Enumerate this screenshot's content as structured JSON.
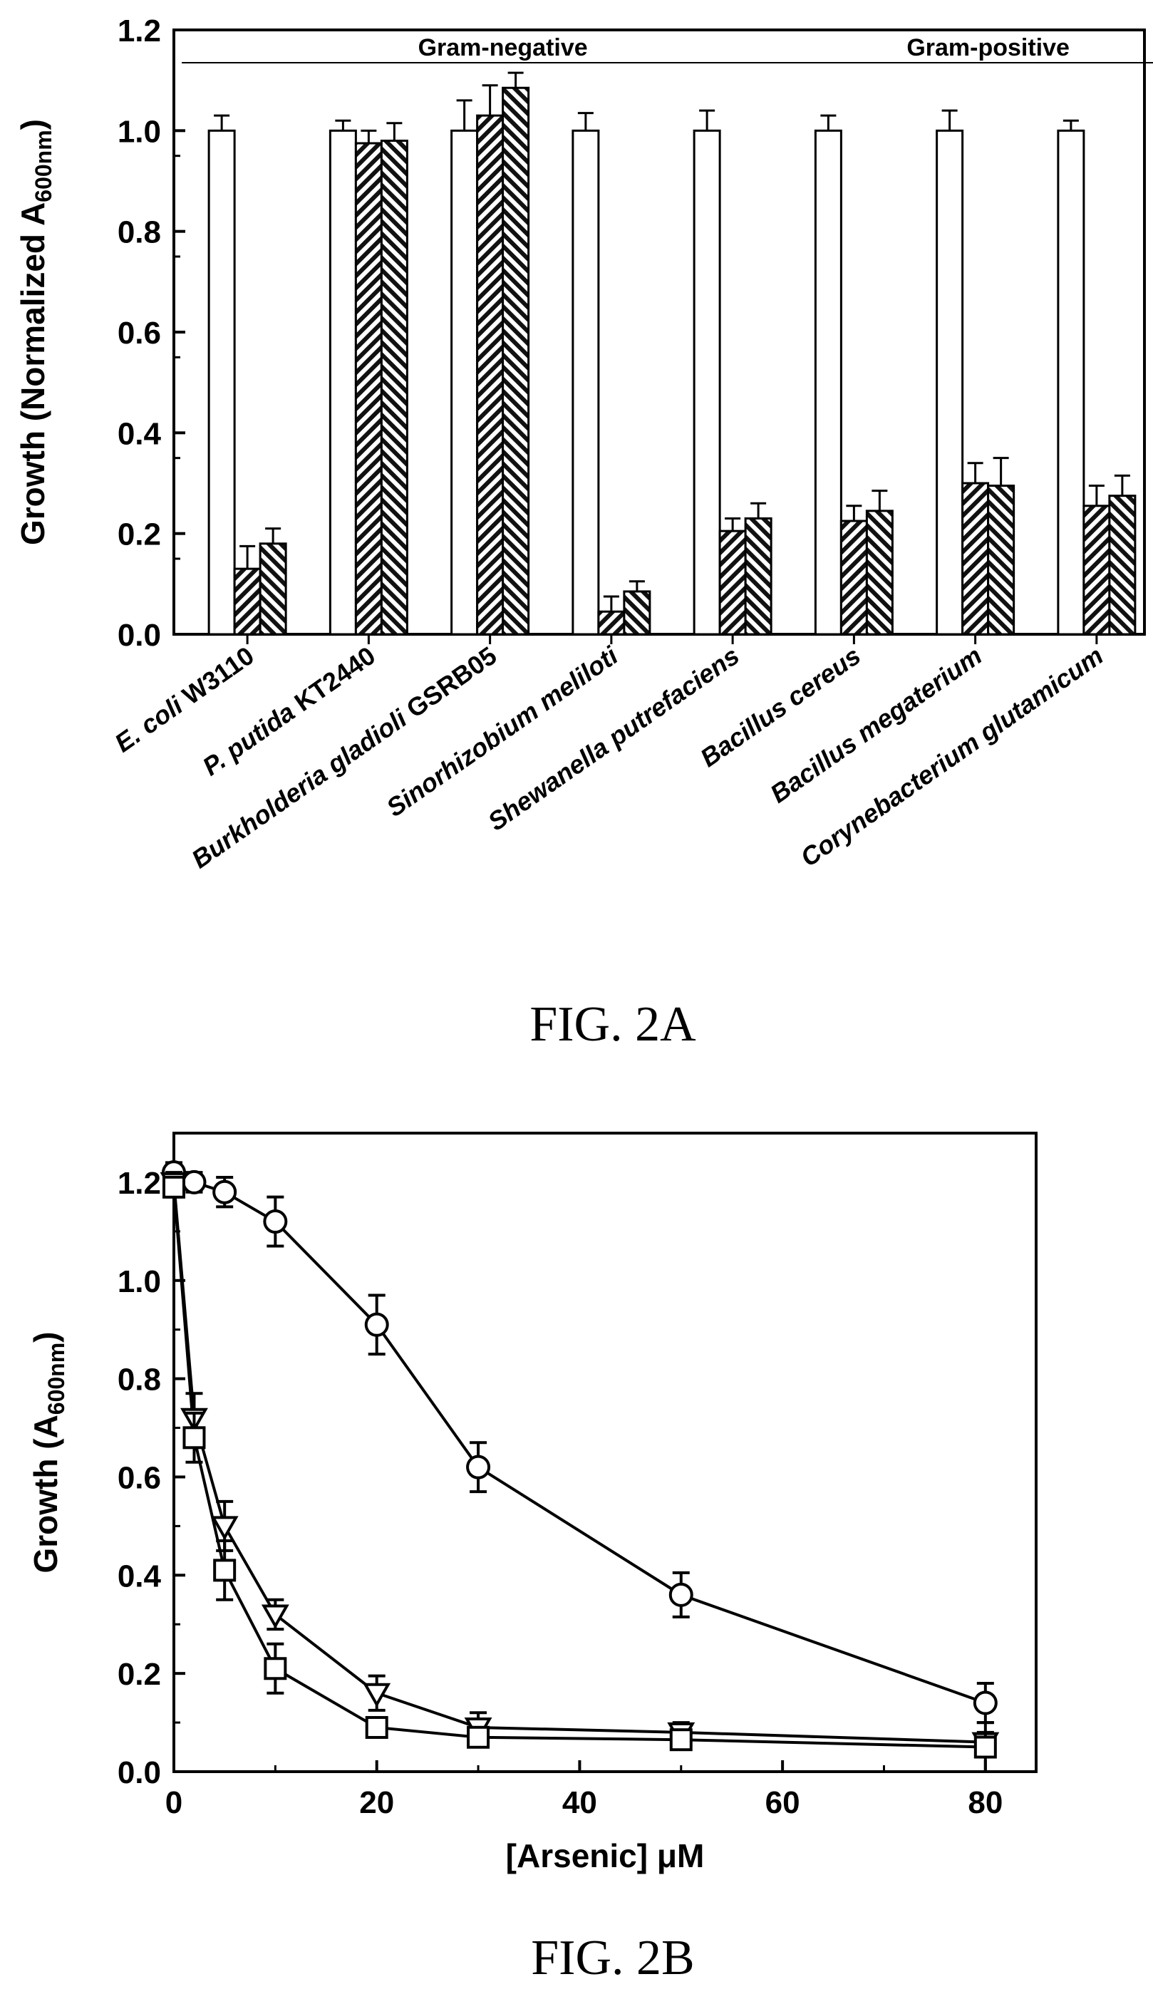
{
  "chart_data": [
    {
      "type": "bar",
      "caption": "FIG. 2A",
      "ylabel": "Growth (Normalized A",
      "ylabel_sub": "600nm",
      "ylabel_close": ")",
      "ylim": [
        0,
        1.2
      ],
      "yticks": [
        "0.0",
        "0.2",
        "0.4",
        "0.6",
        "0.8",
        "1.0",
        "1.2"
      ],
      "group_labels": [
        {
          "text": "Gram-negative",
          "span": [
            0,
            4
          ]
        },
        {
          "text": "Gram-positive",
          "span": [
            5,
            7
          ]
        }
      ],
      "categories": [
        "E. coli W3110",
        "P. putida KT2440",
        "Burkholderia gladioli GSRB05",
        "Sinorhizobium meliloti",
        "Shewanella putrefaciens",
        "Bacillus cereus",
        "Bacillus megaterium",
        "Corynebacterium glutamicum"
      ],
      "category_parts": [
        {
          "italic": "E. coli",
          "roman": " W3110"
        },
        {
          "italic": "P. putida",
          "roman": " KT2440"
        },
        {
          "italic": "Burkholderia gladioli",
          "roman": " GSRB05"
        },
        {
          "italic": "Sinorhizobium meliloti",
          "roman": ""
        },
        {
          "italic": "Shewanella putrefaciens",
          "roman": ""
        },
        {
          "italic": "Bacillus cereus",
          "roman": ""
        },
        {
          "italic": "Bacillus megaterium",
          "roman": ""
        },
        {
          "italic": "Corynebacterium glutamicum",
          "roman": ""
        }
      ],
      "series": [
        {
          "style": "open",
          "values": [
            1.0,
            1.0,
            1.0,
            1.0,
            1.0,
            1.0,
            1.0,
            1.0
          ],
          "errors": [
            0.03,
            0.02,
            0.06,
            0.035,
            0.04,
            0.03,
            0.04,
            0.02
          ]
        },
        {
          "style": "hatch-up",
          "values": [
            0.13,
            0.975,
            1.03,
            0.045,
            0.205,
            0.225,
            0.3,
            0.255
          ],
          "errors": [
            0.045,
            0.025,
            0.06,
            0.03,
            0.025,
            0.03,
            0.04,
            0.04
          ]
        },
        {
          "style": "hatch-down",
          "values": [
            0.18,
            0.98,
            1.085,
            0.085,
            0.23,
            0.245,
            0.295,
            0.275
          ],
          "errors": [
            0.03,
            0.035,
            0.03,
            0.02,
            0.03,
            0.04,
            0.055,
            0.04
          ]
        }
      ]
    },
    {
      "type": "line",
      "caption": "FIG. 2B",
      "xlabel": "[Arsenic] μM",
      "ylabel": "Growth (A",
      "ylabel_sub": "600nm",
      "ylabel_close": ")",
      "xlim": [
        0,
        85
      ],
      "ylim": [
        0,
        1.3
      ],
      "xticks": [
        "0",
        "20",
        "40",
        "60",
        "80"
      ],
      "yticks": [
        "0.0",
        "0.2",
        "0.4",
        "0.6",
        "0.8",
        "1.0",
        "1.2"
      ],
      "x": [
        0,
        2,
        5,
        10,
        20,
        30,
        50,
        80
      ],
      "series": [
        {
          "marker": "circle",
          "values": [
            1.22,
            1.2,
            1.18,
            1.12,
            0.91,
            0.62,
            0.36,
            0.14
          ],
          "errors": [
            0.02,
            0.02,
            0.03,
            0.05,
            0.06,
            0.05,
            0.045,
            0.04
          ]
        },
        {
          "marker": "triangle-down",
          "values": [
            1.2,
            0.72,
            0.5,
            0.32,
            0.16,
            0.09,
            0.08,
            0.06
          ],
          "errors": [
            0.02,
            0.05,
            0.05,
            0.03,
            0.035,
            0.03,
            0.02,
            0.02
          ]
        },
        {
          "marker": "square",
          "values": [
            1.19,
            0.68,
            0.41,
            0.21,
            0.09,
            0.07,
            0.065,
            0.05
          ],
          "errors": [
            0.02,
            0.05,
            0.06,
            0.05,
            0.02,
            0.02,
            0.02,
            0.05
          ]
        }
      ]
    }
  ]
}
